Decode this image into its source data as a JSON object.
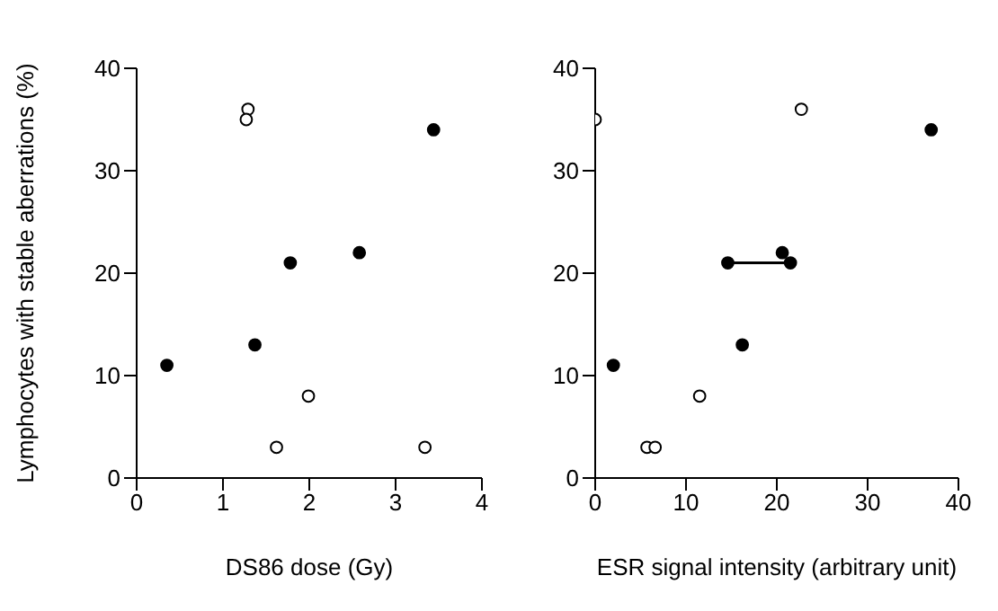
{
  "chart_data": [
    {
      "type": "scatter",
      "xlabel": "DS86 dose (Gy)",
      "ylabel": "Lymphocytes with stable aberrations (%)",
      "xlim": [
        0,
        4
      ],
      "xticks": [
        0,
        1,
        2,
        3,
        4
      ],
      "ylim": [
        0,
        40
      ],
      "yticks": [
        0,
        10,
        20,
        30,
        40
      ],
      "marker": "circle",
      "grid": false,
      "series": [
        {
          "color": "#000000",
          "x": [
            0.35,
            1.37,
            1.78,
            2.58,
            3.44
          ],
          "values": [
            11,
            13,
            21,
            22,
            34
          ]
        },
        {
          "color": "#ffffff",
          "x": [
            1.29,
            1.27,
            1.99,
            1.62,
            3.34
          ],
          "values": [
            36,
            35,
            8,
            3,
            3
          ]
        }
      ]
    },
    {
      "type": "scatter",
      "xlabel": "ESR signal intensity (arbitrary unit)",
      "xlim": [
        0,
        40
      ],
      "xticks": [
        0,
        10,
        20,
        30,
        40
      ],
      "ylim": [
        0,
        40
      ],
      "yticks": [
        0,
        10,
        20,
        30,
        40
      ],
      "marker": "circle",
      "grid": false,
      "series": [
        {
          "type": "line",
          "marker": "none",
          "color": "#000000",
          "x": [
            14.6,
            21.5
          ],
          "values": [
            21,
            21
          ]
        },
        {
          "color": "#000000",
          "x": [
            2.0,
            16.2,
            14.6,
            21.5,
            20.6,
            37.0
          ],
          "values": [
            11,
            13,
            21,
            21,
            22,
            34
          ]
        },
        {
          "color": "#ffffff",
          "x": [
            0,
            22.7,
            11.5,
            5.7,
            6.6
          ],
          "values": [
            35,
            36,
            8,
            3,
            3
          ]
        }
      ]
    }
  ]
}
